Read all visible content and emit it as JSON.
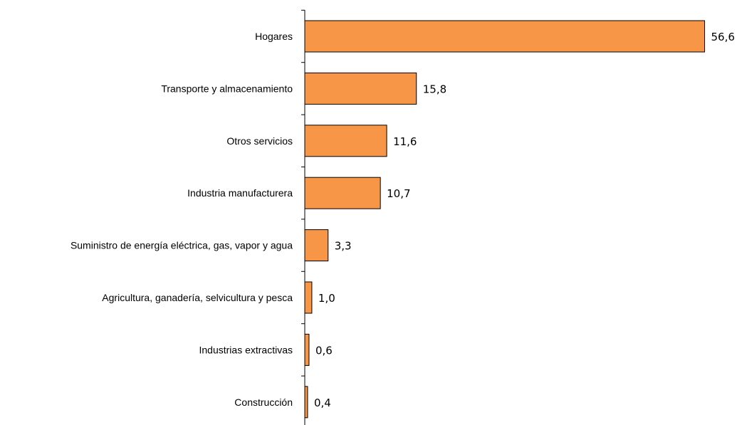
{
  "chart_data": {
    "type": "bar",
    "orientation": "horizontal",
    "categories": [
      "Hogares",
      "Transporte y almacenamiento",
      "Otros servicios",
      "Industria manufacturera",
      "Suministro de energía eléctrica, gas, vapor  y agua",
      "Agricultura, ganadería, selvicultura y pesca",
      "Industrias extractivas",
      "Construcción"
    ],
    "values": [
      56.6,
      15.8,
      11.6,
      10.7,
      3.3,
      1.0,
      0.6,
      0.4
    ],
    "value_labels": [
      "56,6",
      "15,8",
      "11,6",
      "10,7",
      "3,3",
      "1,0",
      "0,6",
      "0,4"
    ],
    "title": "",
    "xlabel": "",
    "ylabel": "",
    "xlim": [
      0,
      57
    ],
    "grid": false,
    "legend": "none",
    "colors": {
      "bar_fill": "#F79646",
      "bar_stroke": "#000000",
      "axis": "#000000"
    }
  }
}
